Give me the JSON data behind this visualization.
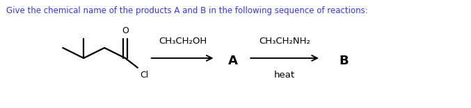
{
  "title": "Give the chemical name of the products A and B in the following sequence of reactions:",
  "title_color": "#3333FF",
  "title_fontsize": 8.5,
  "background_color": "#ffffff",
  "text_fontsize": 9.5,
  "label_fontsize": 13,
  "reagent1_above": "CH₃CH₂OH",
  "reagent2_above": "CH₃CH₂NH₂",
  "reagent2_below": "heat",
  "label_A": "A",
  "label_B": "B",
  "mol_lw": 1.6,
  "arrow_lw": 1.4
}
